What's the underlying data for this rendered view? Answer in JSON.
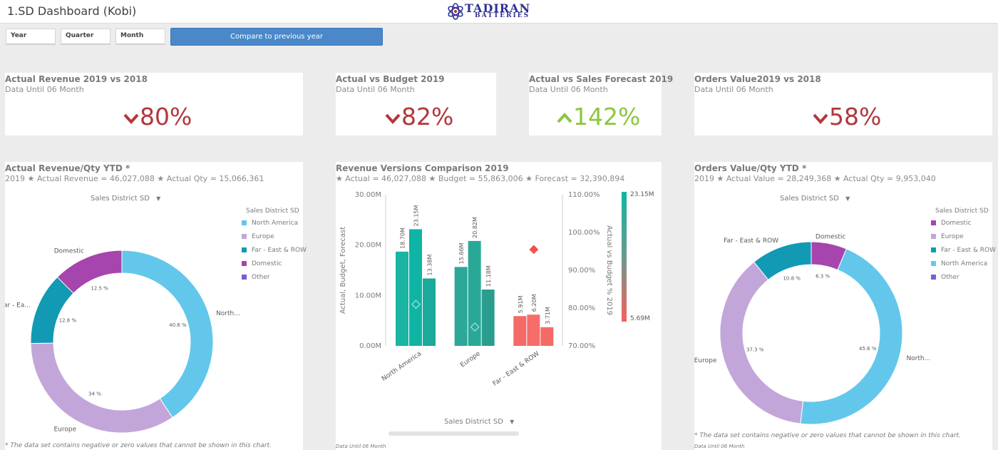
{
  "app": {
    "title": "1.SD Dashboard (Kobi)"
  },
  "logo": {
    "line1": "TADIRAN",
    "line2": "BATTERIES",
    "color": "#2e3192"
  },
  "filters": [
    {
      "label": "Year"
    },
    {
      "label": "Quarter"
    },
    {
      "label": "Month"
    }
  ],
  "compare_button": {
    "label": "Compare to previous year"
  },
  "kpis": [
    {
      "title": "Actual Revenue 2019 vs 2018",
      "subtitle": "Data Until 06 Month",
      "value": "80%",
      "direction": "down",
      "color": "#b2373b",
      "arrow": "chevron-down-icon"
    },
    {
      "title": "Actual vs Budget 2019",
      "subtitle": "Data Until 06 Month",
      "value": "82%",
      "direction": "down",
      "color": "#b2373b",
      "arrow": "chevron-down-icon"
    },
    {
      "title": "Actual vs Sales Forecast 2019",
      "subtitle": "Data Until 06 Month",
      "value": "142%",
      "direction": "up",
      "color": "#8cc63f",
      "arrow": "chevron-up-icon"
    },
    {
      "title": "Orders Value2019 vs 2018",
      "subtitle": "Data Until 06 Month",
      "value": "58%",
      "direction": "down",
      "color": "#b2373b",
      "arrow": "chevron-down-icon"
    }
  ],
  "charts": {
    "revenue": {
      "title": "Actual Revenue/Qty YTD *",
      "subtitle": "2019 ★ Actual Revenue = 46,027,088 ★ Actual Qty = 15,066,361",
      "dimension": "Sales District SD",
      "legend_title": "Sales District SD",
      "legend": [
        {
          "label": "North America",
          "color": "#63c7eb"
        },
        {
          "label": "Europe",
          "color": "#c3a6d9"
        },
        {
          "label": "Far - East & ROW",
          "color": "#1299b3"
        },
        {
          "label": "Domestic",
          "color": "#a645ad"
        },
        {
          "label": "Other",
          "color": "#7c5cd6"
        }
      ],
      "footnote": "* The data set contains negative or zero values that cannot be shown in this chart."
    },
    "versions": {
      "title": "Revenue Versions Comparison 2019",
      "subtitle": "★ Actual = 46,027,088 ★ Budget = 55,863,006 ★ Forecast = 32,390,894",
      "dimension": "Sales District SD",
      "y_left_title": "Actual, Budget, Forecast",
      "y_right_title": "Actual vs Budget % 2019",
      "footnote": "Data Until 06 Month",
      "gradient_max_label": "23.15M",
      "gradient_min_label": "5.69M"
    },
    "orders": {
      "title": "Orders Value/Qty YTD *",
      "subtitle": "2019 ★ Actual Value = 28,249,368 ★ Actual Qty = 9,953,040",
      "dimension": "Sales District SD",
      "legend_title": "Sales District SD",
      "legend": [
        {
          "label": "Domestic",
          "color": "#a645ad"
        },
        {
          "label": "Europe",
          "color": "#c3a6d9"
        },
        {
          "label": "Far - East & ROW",
          "color": "#1299b3"
        },
        {
          "label": "North America",
          "color": "#63c7eb"
        },
        {
          "label": "Other",
          "color": "#7c5cd6"
        }
      ],
      "footnote": "* The data set contains negative or zero values that cannot be shown in this chart.",
      "footnote2": "Data Until 06 Month"
    }
  },
  "chart_data": [
    {
      "type": "pie",
      "title": "Actual Revenue/Qty YTD *",
      "slices": [
        {
          "label": "North...",
          "legend": "North America",
          "value": 40.6,
          "pct_label": "40.6 %",
          "color": "#63c7eb"
        },
        {
          "label": "Europe",
          "legend": "Europe",
          "value": 34,
          "pct_label": "34 %",
          "color": "#c3a6d9"
        },
        {
          "label": "Far - Ea...",
          "legend": "Far - East & ROW",
          "value": 12.8,
          "pct_label": "12.8 %",
          "color": "#1299b3"
        },
        {
          "label": "Domestic",
          "legend": "Domestic",
          "value": 12.5,
          "pct_label": "12.5 %",
          "color": "#a645ad"
        }
      ]
    },
    {
      "type": "bar",
      "title": "Revenue Versions Comparison 2019",
      "categories": [
        "North America",
        "Europe",
        "Far - East & ROW"
      ],
      "series": [
        {
          "values": [
            18.7,
            15.66,
            5.91
          ]
        },
        {
          "values": [
            23.15,
            20.82,
            6.2
          ]
        },
        {
          "values": [
            13.38,
            11.18,
            3.71
          ]
        }
      ],
      "value_labels": [
        [
          "18.70M",
          "23.15M",
          "13.38M"
        ],
        [
          "15.66M",
          "20.82M",
          "11.18M"
        ],
        [
          "5.91M",
          "6.20M",
          "3.71M"
        ]
      ],
      "bar_colors": [
        [
          "#1ab5a3",
          "#10b4a4",
          "#1aa99a"
        ],
        [
          "#2ca899",
          "#2aa897",
          "#2a9d8e"
        ],
        [
          "#f36a67",
          "#f66d69",
          "#f56a66"
        ]
      ],
      "line_series": {
        "name": "Actual vs Budget % 2019",
        "values": [
          81,
          75,
          95.5
        ],
        "markers": [
          "#b9eee6",
          "#b9eee6",
          "#f0514f"
        ]
      },
      "y_left": {
        "title": "Actual, Budget, Forecast",
        "range": [
          0,
          30
        ],
        "ticks": [
          "0.00M",
          "10.00M",
          "20.00M",
          "30.00M"
        ]
      },
      "y_right": {
        "title": "Actual vs Budget % 2019",
        "range": [
          70,
          110
        ],
        "ticks": [
          "70.00%",
          "80.00%",
          "90.00%",
          "100.00%",
          "110.00%"
        ]
      },
      "xlabel": "Sales District SD"
    },
    {
      "type": "pie",
      "title": "Orders Value/Qty YTD *",
      "slices": [
        {
          "label": "Domestic",
          "legend": "Domestic",
          "value": 6.3,
          "pct_label": "6.3 %",
          "color": "#a645ad"
        },
        {
          "label": "North...",
          "legend": "North America",
          "value": 45.6,
          "pct_label": "45.6 %",
          "color": "#63c7eb"
        },
        {
          "label": "Europe",
          "legend": "Europe",
          "value": 37.3,
          "pct_label": "37.3 %",
          "color": "#c3a6d9"
        },
        {
          "label": "Far - East & ROW",
          "legend": "Far - East & ROW",
          "value": 10.8,
          "pct_label": "10.8 %",
          "color": "#1299b3"
        }
      ]
    }
  ]
}
